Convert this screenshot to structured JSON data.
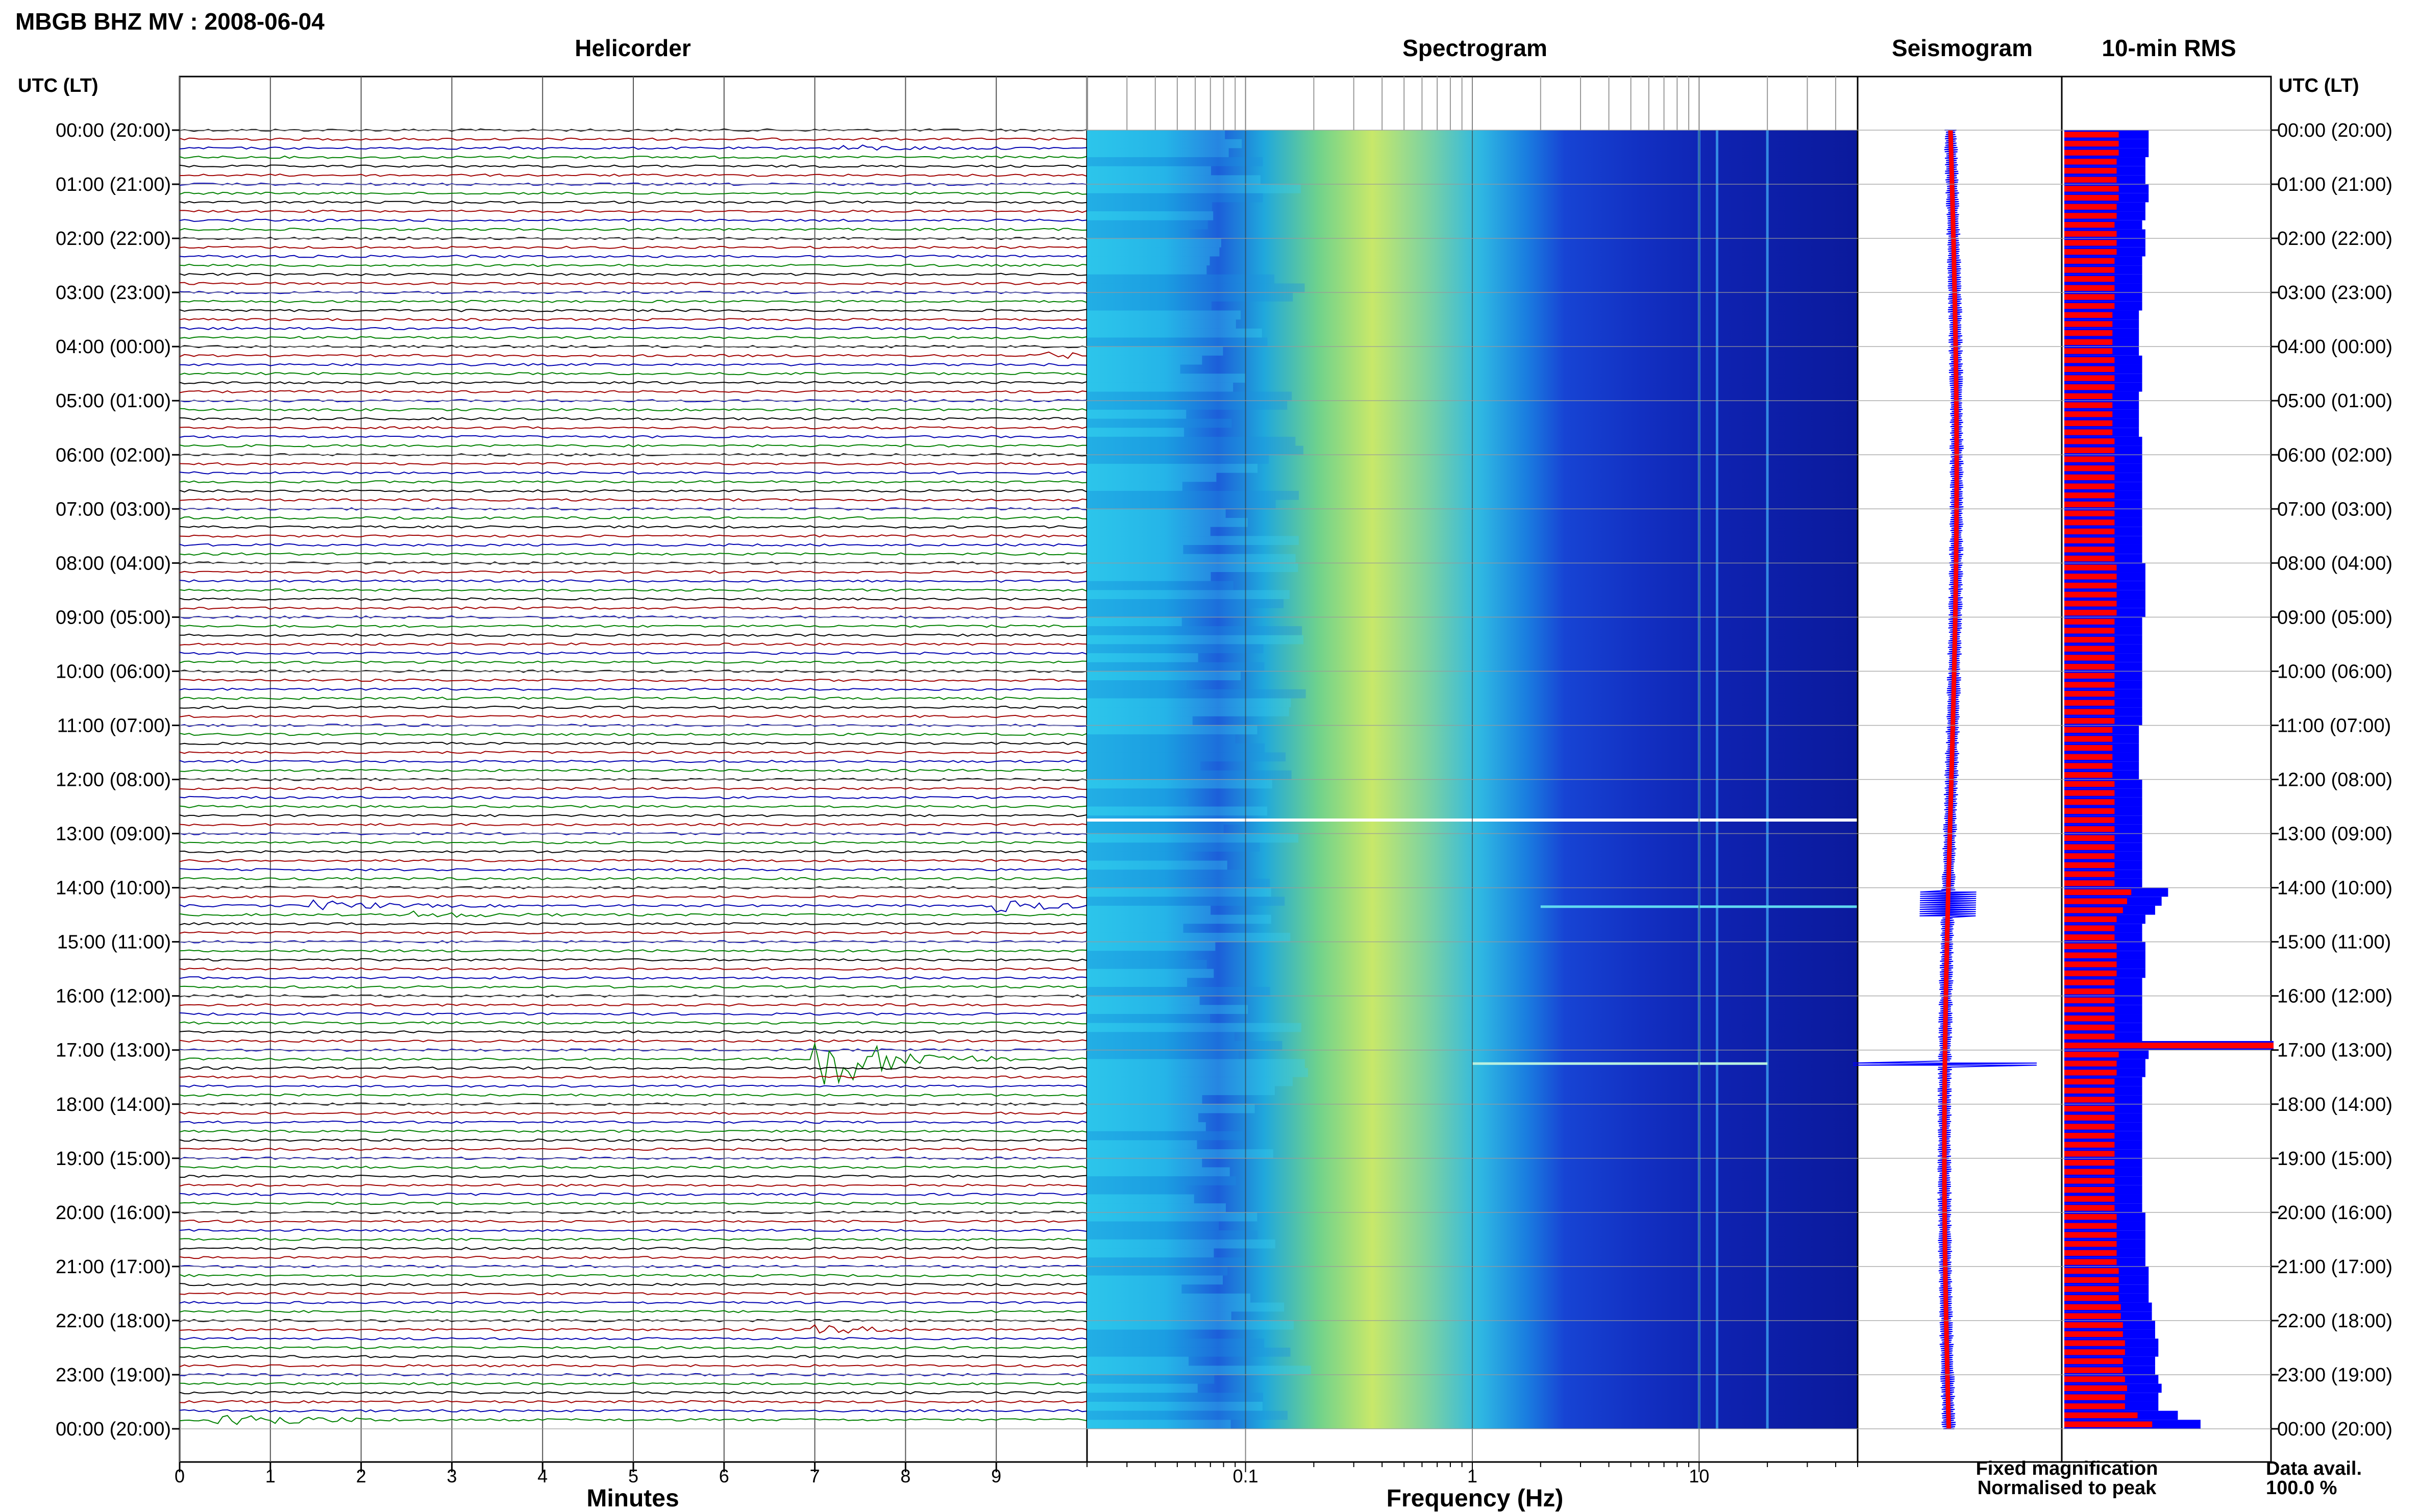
{
  "page": {
    "title": "MBGB BHZ MV : 2008-06-04",
    "left_axis_header": "UTC (LT)",
    "right_axis_header": "UTC (LT)",
    "footer": {
      "legend_fixed": "Fixed magnification",
      "legend_normalised": "Normalised to peak",
      "data_avail_label": "Data avail.",
      "data_avail_value": "100.0 %"
    }
  },
  "colors": {
    "trace_cycle": [
      "#000000",
      "#a00000",
      "#0000b0",
      "#008000"
    ],
    "fixed": "#0000ff",
    "normalised": "#ff0000",
    "grid": "#9a9a9a"
  },
  "time_labels": [
    "00:00 (20:00)",
    "01:00 (21:00)",
    "02:00 (22:00)",
    "03:00 (23:00)",
    "04:00 (00:00)",
    "05:00 (01:00)",
    "06:00 (02:00)",
    "07:00 (03:00)",
    "08:00 (04:00)",
    "09:00 (05:00)",
    "10:00 (06:00)",
    "11:00 (07:00)",
    "12:00 (08:00)",
    "13:00 (09:00)",
    "14:00 (10:00)",
    "15:00 (11:00)",
    "16:00 (12:00)",
    "17:00 (13:00)",
    "18:00 (14:00)",
    "19:00 (15:00)",
    "20:00 (16:00)",
    "21:00 (17:00)",
    "22:00 (18:00)",
    "23:00 (19:00)",
    "00:00 (20:00)"
  ],
  "chart_data": [
    {
      "type": "line",
      "title": "Helicorder",
      "xlabel": "Minutes",
      "xlim": [
        0,
        10
      ],
      "x_ticks": [
        0,
        1,
        2,
        3,
        4,
        5,
        6,
        7,
        8,
        9
      ],
      "rows": 144,
      "row_minutes": 10,
      "events": [
        {
          "hour": 0.3,
          "minute": 7.3,
          "amplitude": 0.6
        },
        {
          "hour": 4.2,
          "minute": 9.5,
          "amplitude": 0.6
        },
        {
          "hour": 14.3,
          "minute": 1.5,
          "amplitude": 1.0
        },
        {
          "hour": 14.3,
          "minute": 9.0,
          "amplitude": 1.2
        },
        {
          "hour": 14.5,
          "minute": 2.6,
          "amplitude": 0.6
        },
        {
          "hour": 17.2,
          "minute": 7.0,
          "amplitude": 8.0
        },
        {
          "hour": 22.2,
          "minute": 7.0,
          "amplitude": 0.8
        },
        {
          "hour": 23.9,
          "minute": 0.4,
          "amplitude": 2.5
        }
      ]
    },
    {
      "type": "heatmap",
      "title": "Spectrogram",
      "xlabel": "Frequency (Hz)",
      "x_scale": "log",
      "xlim": [
        0.02,
        50
      ],
      "x_tick_labels": [
        "0.1",
        "1",
        "10"
      ],
      "x_ticks": [
        0.1,
        1,
        10
      ],
      "peak_frequency_hz": 0.4,
      "persistent_lines_hz": [
        10,
        12,
        20
      ]
    },
    {
      "type": "line",
      "title": "Seismogram",
      "series": [
        {
          "name": "Fixed magnification"
        },
        {
          "name": "Normalised to peak"
        }
      ]
    },
    {
      "type": "bar",
      "title": "10-min RMS",
      "bins": 144,
      "rms_relative": [
        0.26,
        0.26,
        0.26,
        0.25,
        0.25,
        0.25,
        0.26,
        0.26,
        0.25,
        0.25,
        0.24,
        0.25,
        0.25,
        0.25,
        0.24,
        0.24,
        0.24,
        0.24,
        0.24,
        0.24,
        0.23,
        0.23,
        0.23,
        0.23,
        0.23,
        0.24,
        0.24,
        0.24,
        0.24,
        0.23,
        0.23,
        0.23,
        0.23,
        0.23,
        0.24,
        0.24,
        0.24,
        0.24,
        0.24,
        0.24,
        0.24,
        0.24,
        0.24,
        0.24,
        0.24,
        0.24,
        0.24,
        0.24,
        0.25,
        0.25,
        0.25,
        0.25,
        0.25,
        0.25,
        0.24,
        0.24,
        0.24,
        0.24,
        0.24,
        0.24,
        0.24,
        0.24,
        0.24,
        0.24,
        0.24,
        0.24,
        0.23,
        0.23,
        0.23,
        0.23,
        0.23,
        0.23,
        0.24,
        0.24,
        0.24,
        0.24,
        0.24,
        0.24,
        0.24,
        0.24,
        0.24,
        0.24,
        0.24,
        0.24,
        0.32,
        0.3,
        0.28,
        0.25,
        0.24,
        0.24,
        0.25,
        0.25,
        0.25,
        0.25,
        0.24,
        0.24,
        0.24,
        0.24,
        0.24,
        0.24,
        0.24,
        1.0,
        0.26,
        0.25,
        0.25,
        0.24,
        0.24,
        0.24,
        0.24,
        0.24,
        0.24,
        0.24,
        0.24,
        0.24,
        0.24,
        0.24,
        0.24,
        0.24,
        0.24,
        0.24,
        0.25,
        0.25,
        0.25,
        0.25,
        0.25,
        0.25,
        0.26,
        0.26,
        0.26,
        0.26,
        0.27,
        0.27,
        0.28,
        0.28,
        0.29,
        0.29,
        0.28,
        0.28,
        0.29,
        0.3,
        0.29,
        0.29,
        0.35,
        0.42
      ]
    }
  ]
}
